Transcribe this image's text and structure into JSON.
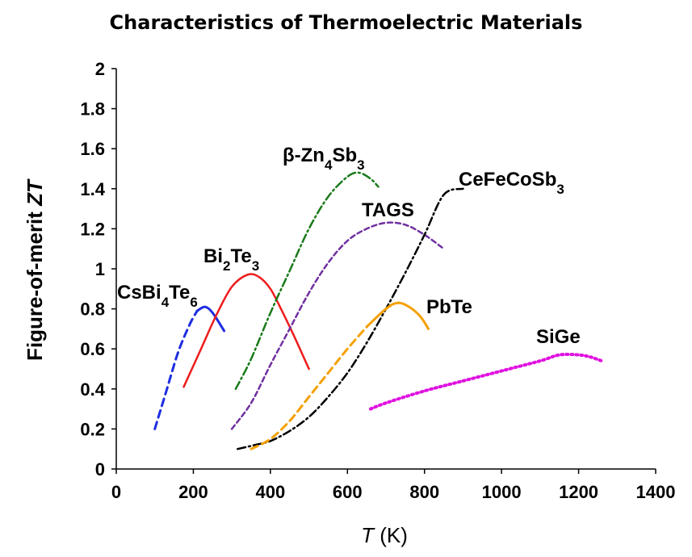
{
  "chart_data": {
    "type": "line",
    "title": "Characteristics of Thermoelectric Materials",
    "xlabel": {
      "symbol": "T",
      "unit": "(K)"
    },
    "ylabel": {
      "text": "Figure-of-merit ",
      "symbol": "ZT"
    },
    "xlim": [
      0,
      1400
    ],
    "ylim": [
      0,
      2
    ],
    "xticks": [
      "0",
      "200",
      "400",
      "600",
      "800",
      "1000",
      "1200",
      "1400"
    ],
    "yticks": [
      "0",
      "0.2",
      "0.4",
      "0.6",
      "0.8",
      "1",
      "1.2",
      "1.4",
      "1.6",
      "1.8",
      "2"
    ],
    "grid": false,
    "legend": "none",
    "series": [
      {
        "name": "CsBi4Te6",
        "label_parts": [
          [
            "CsBi",
            ""
          ],
          [
            "4",
            "sub"
          ],
          [
            "Te",
            ""
          ],
          [
            "6",
            "sub"
          ]
        ],
        "color": "#1f2de0",
        "style": "dashed-solid",
        "x": [
          100,
          130,
          160,
          190,
          210,
          230,
          250,
          280
        ],
        "y": [
          0.2,
          0.39,
          0.58,
          0.72,
          0.79,
          0.81,
          0.78,
          0.69
        ]
      },
      {
        "name": "Bi2Te3",
        "label_parts": [
          [
            "Bi",
            ""
          ],
          [
            "2",
            "sub"
          ],
          [
            "Te",
            ""
          ],
          [
            "3",
            "sub"
          ]
        ],
        "color": "#ee1c1c",
        "style": "solid",
        "x": [
          175,
          220,
          260,
          300,
          340,
          370,
          400,
          430,
          460,
          500
        ],
        "y": [
          0.41,
          0.6,
          0.77,
          0.91,
          0.97,
          0.96,
          0.9,
          0.79,
          0.67,
          0.5
        ]
      },
      {
        "name": "β-Zn4Sb3",
        "label_parts": [
          [
            "β-Zn",
            ""
          ],
          [
            "4",
            "sub"
          ],
          [
            "Sb",
            ""
          ],
          [
            "3",
            "sub"
          ]
        ],
        "color": "#1a7a1a",
        "style": "dashdot",
        "x": [
          310,
          350,
          400,
          450,
          500,
          550,
          600,
          630,
          660,
          680
        ],
        "y": [
          0.4,
          0.55,
          0.78,
          0.99,
          1.2,
          1.36,
          1.46,
          1.48,
          1.45,
          1.41
        ]
      },
      {
        "name": "TAGS",
        "label_parts": [
          [
            "TAGS",
            ""
          ]
        ],
        "color": "#7030a0",
        "style": "dashed",
        "x": [
          300,
          350,
          400,
          450,
          500,
          550,
          600,
          650,
          700,
          750,
          800,
          850
        ],
        "y": [
          0.2,
          0.33,
          0.52,
          0.7,
          0.88,
          1.03,
          1.14,
          1.2,
          1.23,
          1.22,
          1.17,
          1.1
        ]
      },
      {
        "name": "CeFeCoSb3",
        "label_parts": [
          [
            "CeFeCoSb",
            ""
          ],
          [
            "3",
            "sub"
          ]
        ],
        "color": "#000000",
        "style": "dashdot",
        "x": [
          315,
          360,
          400,
          450,
          500,
          550,
          600,
          650,
          700,
          750,
          800,
          850,
          900
        ],
        "y": [
          0.1,
          0.12,
          0.14,
          0.19,
          0.26,
          0.36,
          0.48,
          0.63,
          0.8,
          0.98,
          1.17,
          1.37,
          1.4
        ]
      },
      {
        "name": "PbTe",
        "label_parts": [
          [
            "PbTe",
            ""
          ]
        ],
        "color": "#f5a000",
        "style": "dashed-solid",
        "x": [
          350,
          400,
          450,
          500,
          550,
          600,
          650,
          700,
          730,
          760,
          790,
          810
        ],
        "y": [
          0.1,
          0.15,
          0.24,
          0.36,
          0.48,
          0.6,
          0.71,
          0.8,
          0.83,
          0.81,
          0.76,
          0.7
        ]
      },
      {
        "name": "SiGe",
        "label_parts": [
          [
            "SiGe",
            ""
          ]
        ],
        "color": "#e010e0",
        "style": "dotted",
        "x": [
          660,
          700,
          800,
          900,
          1000,
          1100,
          1150,
          1200,
          1230,
          1260
        ],
        "y": [
          0.3,
          0.33,
          0.39,
          0.44,
          0.49,
          0.54,
          0.57,
          0.57,
          0.56,
          0.54
        ]
      }
    ]
  }
}
